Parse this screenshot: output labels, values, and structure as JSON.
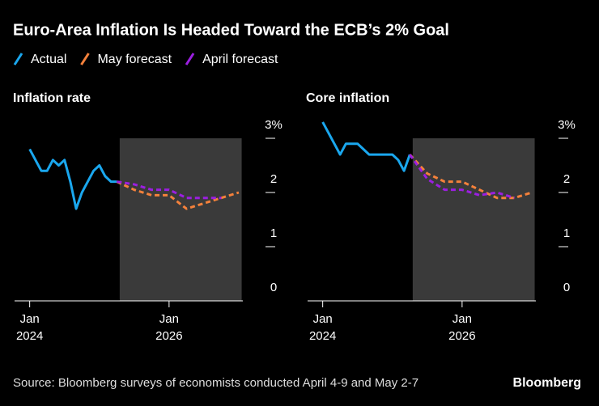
{
  "title": "Euro-Area Inflation Is Headed Toward the ECB’s 2% Goal",
  "source": "Source: Bloomberg surveys of economists conducted April 4-9 and May 2-7",
  "brand": "Bloomberg",
  "chart_data": [
    {
      "type": "line",
      "title": "Inflation rate",
      "xlim": [
        -2.6,
        36.7
      ],
      "ylim": [
        0,
        3.4
      ],
      "xticks": [
        {
          "value": 0,
          "label": [
            "Jan",
            "2024"
          ]
        },
        {
          "value": 24,
          "label": [
            "Jan",
            "2026"
          ]
        }
      ],
      "yticks": [
        0,
        1,
        2,
        {
          "value": 3,
          "label": "3%"
        }
      ],
      "shaded_x": [
        15.5,
        36.5
      ],
      "shade_color": "#3a3a3a",
      "series": [
        {
          "name": "Actual",
          "color": "#1aa7ee",
          "dashed": false,
          "x": [
            0,
            1,
            2,
            3,
            4,
            5,
            6,
            7,
            8,
            9,
            10,
            11,
            12,
            13,
            14,
            15
          ],
          "values": [
            2.8,
            2.6,
            2.4,
            2.4,
            2.6,
            2.5,
            2.6,
            2.2,
            1.7,
            2.0,
            2.2,
            2.4,
            2.5,
            2.3,
            2.2,
            2.2
          ]
        },
        {
          "name": "May forecast",
          "color": "#f4813b",
          "dashed": true,
          "x": [
            15,
            18,
            21,
            24,
            27,
            30,
            33,
            36
          ],
          "values": [
            2.2,
            2.05,
            1.95,
            1.95,
            1.7,
            1.8,
            1.9,
            2.0
          ]
        },
        {
          "name": "April forecast",
          "color": "#9b1fe0",
          "dashed": true,
          "x": [
            15,
            18,
            21,
            24,
            27,
            30,
            33,
            36
          ],
          "values": [
            2.2,
            2.15,
            2.05,
            2.05,
            1.9,
            1.9,
            1.9,
            null
          ]
        }
      ]
    },
    {
      "type": "line",
      "title": "Core inflation",
      "xlim": [
        -2.6,
        36.7
      ],
      "ylim": [
        0,
        3.4
      ],
      "xticks": [
        {
          "value": 0,
          "label": [
            "Jan",
            "2024"
          ]
        },
        {
          "value": 24,
          "label": [
            "Jan",
            "2026"
          ]
        }
      ],
      "yticks": [
        0,
        1,
        2,
        {
          "value": 3,
          "label": "3%"
        }
      ],
      "shaded_x": [
        15.5,
        36.5
      ],
      "shade_color": "#3a3a3a",
      "series": [
        {
          "name": "Actual",
          "color": "#1aa7ee",
          "dashed": false,
          "x": [
            0,
            1,
            2,
            3,
            4,
            5,
            6,
            7,
            8,
            9,
            10,
            11,
            12,
            13,
            14,
            15
          ],
          "values": [
            3.3,
            3.1,
            2.9,
            2.7,
            2.9,
            2.9,
            2.9,
            2.8,
            2.7,
            2.7,
            2.7,
            2.7,
            2.7,
            2.6,
            2.4,
            2.7
          ]
        },
        {
          "name": "May forecast",
          "color": "#f4813b",
          "dashed": true,
          "x": [
            15,
            18,
            21,
            24,
            27,
            30,
            33,
            36
          ],
          "values": [
            2.7,
            2.35,
            2.2,
            2.2,
            2.05,
            1.9,
            1.9,
            2.0
          ]
        },
        {
          "name": "April forecast",
          "color": "#9b1fe0",
          "dashed": true,
          "x": [
            15,
            18,
            21,
            24,
            27,
            30,
            33,
            36
          ],
          "values": [
            2.7,
            2.25,
            2.05,
            2.05,
            1.95,
            2.0,
            1.9,
            null
          ]
        }
      ]
    }
  ]
}
